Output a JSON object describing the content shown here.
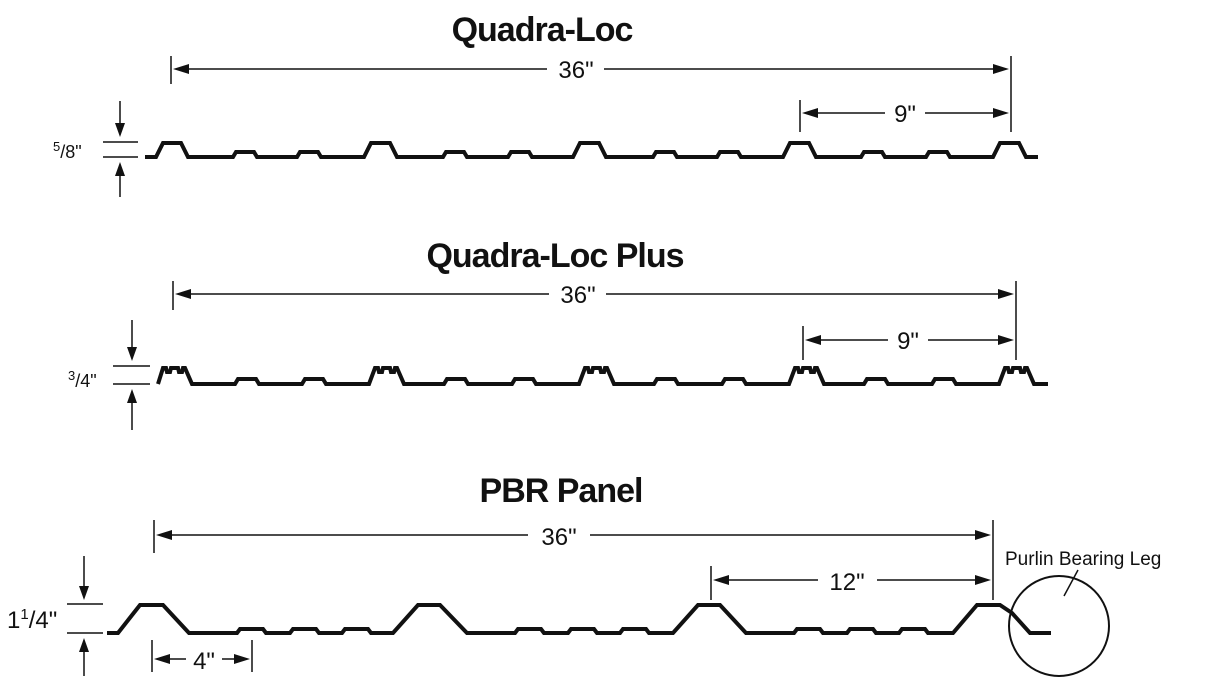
{
  "panels": [
    {
      "title": "Quadra-Loc",
      "width_label": "36\"",
      "spacing_label": "9\"",
      "height": {
        "num": "5",
        "den": "8",
        "unit": "\""
      }
    },
    {
      "title": "Quadra-Loc Plus",
      "width_label": "36\"",
      "spacing_label": "9\"",
      "height": {
        "num": "3",
        "den": "4",
        "unit": "\""
      }
    },
    {
      "title": "PBR Panel",
      "width_label": "36\"",
      "spacing_label": "12\"",
      "small_spacing_label": "4\"",
      "height": {
        "whole": "1",
        "num": "1",
        "den": "4",
        "unit": "\""
      },
      "callout": "Purlin Bearing Leg"
    }
  ],
  "colors": {
    "ink": "#111111",
    "background": "#ffffff"
  }
}
